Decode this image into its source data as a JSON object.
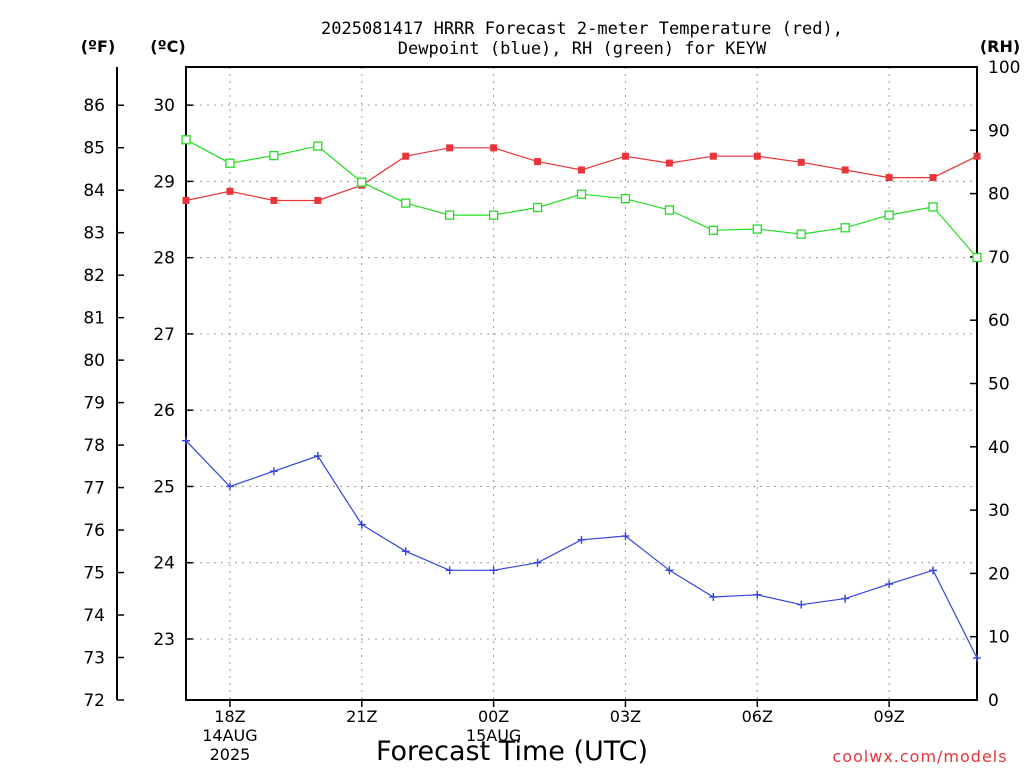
{
  "chart_data": {
    "type": "line",
    "title_line1": "2025081417 HRRR Forecast 2-meter Temperature (red),",
    "title_line2": "Dewpoint (blue), RH (green) for KEYW",
    "xlabel": "Forecast Time (UTC)",
    "credit": "coolwx.com/models",
    "unit_f": "(ºF)",
    "unit_c": "(ºC)",
    "unit_rh": "(RH)",
    "x_hours": [
      17,
      18,
      19,
      20,
      21,
      22,
      23,
      24,
      25,
      26,
      27,
      28,
      29,
      30,
      31,
      32,
      33,
      34,
      35
    ],
    "x_ticks": [
      {
        "h": 18,
        "label": "18Z",
        "sub1": "14AUG",
        "sub2": "2025"
      },
      {
        "h": 21,
        "label": "21Z",
        "sub1": "",
        "sub2": ""
      },
      {
        "h": 24,
        "label": "00Z",
        "sub1": "15AUG",
        "sub2": ""
      },
      {
        "h": 27,
        "label": "03Z",
        "sub1": "",
        "sub2": ""
      },
      {
        "h": 30,
        "label": "06Z",
        "sub1": "",
        "sub2": ""
      },
      {
        "h": 33,
        "label": "09Z",
        "sub1": "",
        "sub2": ""
      }
    ],
    "xlim": [
      17,
      35
    ],
    "ylim_c": [
      22.2,
      30.5
    ],
    "ylim_f": [
      72,
      86.9
    ],
    "ylim_rh": [
      0,
      100
    ],
    "f_ticks": [
      72,
      73,
      74,
      75,
      76,
      77,
      78,
      79,
      80,
      81,
      82,
      83,
      84,
      85,
      86
    ],
    "c_ticks": [
      23,
      24,
      25,
      26,
      27,
      28,
      29,
      30
    ],
    "rh_ticks": [
      0,
      10,
      20,
      30,
      40,
      50,
      60,
      70,
      80,
      90,
      100
    ],
    "series": [
      {
        "name": "Temperature",
        "color": "#e8353a",
        "marker": "square-filled",
        "axis": "celsius",
        "values": [
          28.75,
          28.87,
          28.75,
          28.75,
          28.95,
          29.33,
          29.44,
          29.44,
          29.26,
          29.15,
          29.33,
          29.24,
          29.33,
          29.33,
          29.25,
          29.15,
          29.05,
          29.05,
          29.33
        ]
      },
      {
        "name": "Dewpoint",
        "color": "#3344e0",
        "marker": "plus",
        "axis": "celsius",
        "values": [
          25.6,
          25.0,
          25.2,
          25.4,
          24.5,
          24.15,
          23.9,
          23.9,
          24.0,
          24.3,
          24.35,
          23.9,
          23.55,
          23.58,
          23.45,
          23.53,
          23.72,
          23.9,
          22.75
        ]
      },
      {
        "name": "RH",
        "color": "#22dd22",
        "marker": "square-open",
        "axis": "rh",
        "values": [
          88.5,
          84.8,
          86.0,
          87.5,
          81.8,
          78.5,
          76.6,
          76.6,
          77.8,
          79.9,
          79.2,
          77.4,
          74.2,
          74.4,
          73.6,
          74.6,
          76.6,
          77.9,
          69.9
        ]
      }
    ]
  }
}
